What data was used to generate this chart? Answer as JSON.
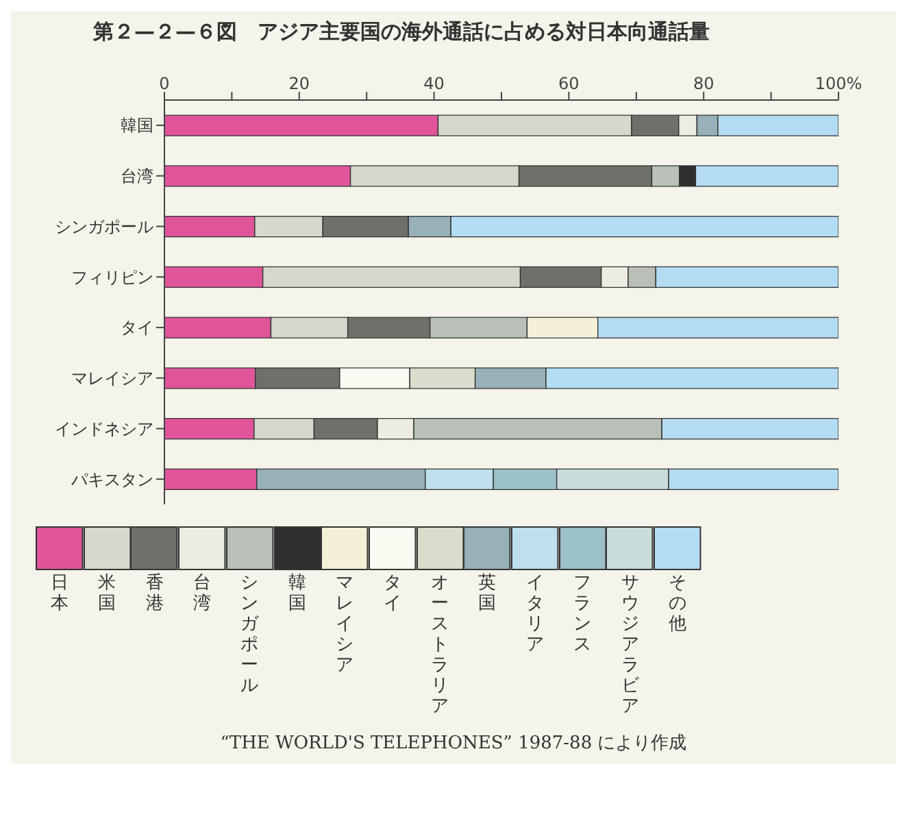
{
  "chart_data": {
    "type": "bar",
    "orientation": "horizontal",
    "stacked": true,
    "title": "第２—２—６図　アジア主要国の海外通話に占める対日本向通話量",
    "categories": [
      "韓国",
      "台湾",
      "シンガポール",
      "フィリピン",
      "タイ",
      "マレイシア",
      "インドネシア",
      "パキスタン"
    ],
    "xlim": [
      0,
      100
    ],
    "xticks": [
      0,
      {
        "value": 10,
        "label": null
      },
      20,
      {
        "value": 30,
        "label": null
      },
      40,
      {
        "value": 50,
        "label": null
      },
      60,
      {
        "value": 70,
        "label": null
      },
      80,
      {
        "value": 90,
        "label": null
      },
      {
        "value": 100,
        "label": "100%"
      }
    ],
    "series": [
      {
        "name": "日本",
        "color": "#e0559a",
        "values": [
          40.6,
          27.6,
          13.4,
          14.6,
          15.8,
          13.5,
          13.3,
          13.7
        ]
      },
      {
        "name": "米国",
        "color": "#d6d8cc",
        "values": [
          28.7,
          25.0,
          10.1,
          38.2,
          11.4,
          null,
          8.9,
          null
        ]
      },
      {
        "name": "香港",
        "color": "#6e706a",
        "values": [
          7.0,
          19.7,
          12.7,
          12.0,
          12.2,
          12.5,
          9.4,
          null
        ]
      },
      {
        "name": "台湾",
        "color": "#ecece0",
        "values": [
          2.7,
          null,
          null,
          4.0,
          null,
          null,
          5.4,
          null
        ]
      },
      {
        "name": "シンガポール",
        "color": "#b8c0b8",
        "values": [
          null,
          4.1,
          null,
          4.1,
          14.4,
          null,
          36.8,
          null
        ]
      },
      {
        "name": "韓国",
        "color": "#2e302e",
        "values": [
          null,
          2.4,
          null,
          null,
          null,
          null,
          null,
          null
        ]
      },
      {
        "name": "マレイシア",
        "color": "#f4f0d8",
        "values": [
          null,
          null,
          null,
          null,
          10.5,
          null,
          null,
          null
        ]
      },
      {
        "name": "タイ",
        "color": "#fafaf2",
        "values": [
          null,
          null,
          null,
          null,
          null,
          10.4,
          null,
          null
        ]
      },
      {
        "name": "オーストラリア",
        "color": "#dcdccc",
        "values": [
          null,
          null,
          null,
          null,
          null,
          9.7,
          null,
          null
        ]
      },
      {
        "name": "英国",
        "color": "#98b0b8",
        "values": [
          3.1,
          null,
          6.3,
          null,
          null,
          10.5,
          null,
          25.0
        ]
      },
      {
        "name": "イタリア",
        "color": "#bde0ec",
        "values": [
          null,
          null,
          null,
          null,
          null,
          null,
          null,
          10.1
        ]
      },
      {
        "name": "フランス",
        "color": "#9cc0c8",
        "values": [
          null,
          null,
          null,
          null,
          null,
          null,
          null,
          9.4
        ]
      },
      {
        "name": "サウジアラビア",
        "color": "#c8dcdc",
        "values": [
          null,
          null,
          null,
          null,
          null,
          null,
          null,
          16.6
        ]
      },
      {
        "name": "その他",
        "color": "#b4dcf2",
        "values": [
          17.9,
          21.2,
          57.5,
          27.1,
          35.7,
          43.4,
          26.2,
          25.2
        ]
      }
    ],
    "legend": "bottom",
    "annotations": [
      "“THE WORLD'S TELEPHONES” 1987-88 により作成"
    ]
  }
}
